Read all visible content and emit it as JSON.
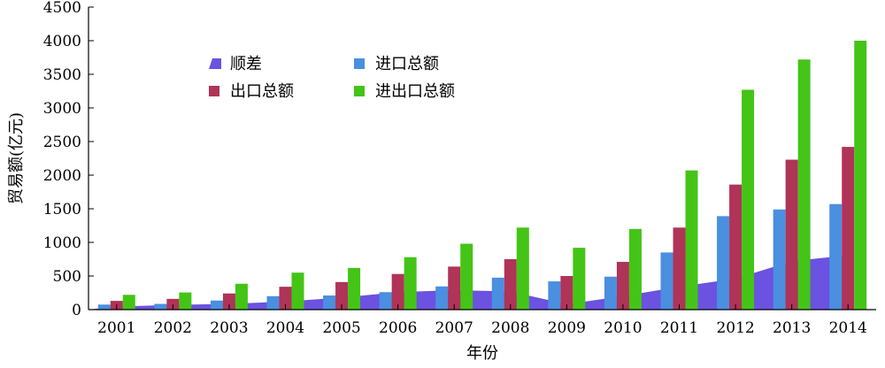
{
  "chart_data": {
    "type": "bar",
    "xlabel": "年份",
    "ylabel": "贸易额(亿元)",
    "ylim": [
      0,
      4500
    ],
    "yticks": [
      0,
      500,
      1000,
      1500,
      2000,
      2500,
      3000,
      3500,
      4000,
      4500
    ],
    "categories": [
      "2001",
      "2002",
      "2003",
      "2004",
      "2005",
      "2006",
      "2007",
      "2008",
      "2009",
      "2010",
      "2011",
      "2012",
      "2013",
      "2014"
    ],
    "series": [
      {
        "name": "顺差",
        "type": "area",
        "color": "#6b52e0",
        "values": [
          45,
          70,
          85,
          120,
          180,
          260,
          290,
          270,
          80,
          200,
          340,
          460,
          720,
          810
        ]
      },
      {
        "name": "进口总额",
        "type": "bar",
        "color": "#4a8fe0",
        "values": [
          75,
          85,
          135,
          200,
          210,
          260,
          345,
          475,
          420,
          490,
          850,
          1390,
          1490,
          1570
        ]
      },
      {
        "name": "出口总额",
        "type": "bar",
        "color": "#b03358",
        "values": [
          130,
          160,
          240,
          340,
          410,
          530,
          640,
          750,
          500,
          710,
          1220,
          1860,
          2230,
          2420
        ]
      },
      {
        "name": "进出口总额",
        "type": "bar",
        "color": "#44c417",
        "values": [
          220,
          255,
          385,
          550,
          620,
          780,
          980,
          1220,
          920,
          1200,
          2070,
          3270,
          3720,
          4000
        ]
      }
    ],
    "legend_position": "top-left",
    "grid": false
  }
}
